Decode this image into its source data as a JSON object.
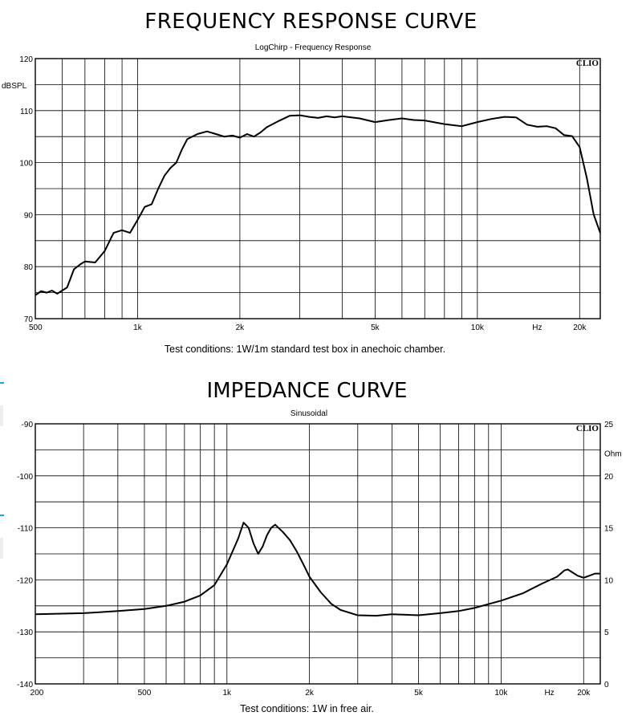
{
  "chart_data": [
    {
      "type": "line",
      "title": "FREQUENCY RESPONSE  CURVE",
      "subtitle": "LogChirp - Frequency Response",
      "watermark": "CLIO",
      "ylabel": "dBSPL",
      "xscale": "log",
      "xlim": [
        500,
        23000
      ],
      "ylim": [
        70,
        120
      ],
      "grid": true,
      "x_tick_labels": [
        {
          "value": 500,
          "label": "500"
        },
        {
          "value": 1000,
          "label": "1k"
        },
        {
          "value": 2000,
          "label": "2k"
        },
        {
          "value": 5000,
          "label": "5k"
        },
        {
          "value": 10000,
          "label": "10k"
        },
        {
          "value": 15000,
          "label": "Hz"
        },
        {
          "value": 20000,
          "label": "20k"
        }
      ],
      "y_ticks": [
        70,
        80,
        90,
        100,
        110,
        120
      ],
      "x_gridlines": [
        600,
        700,
        800,
        900,
        1000,
        2000,
        3000,
        4000,
        5000,
        6000,
        7000,
        8000,
        9000,
        10000,
        20000
      ],
      "x": [
        500,
        520,
        540,
        560,
        580,
        600,
        620,
        650,
        680,
        700,
        750,
        800,
        850,
        900,
        950,
        1000,
        1050,
        1100,
        1150,
        1200,
        1250,
        1300,
        1350,
        1400,
        1500,
        1600,
        1700,
        1800,
        1900,
        2000,
        2100,
        2200,
        2300,
        2400,
        2600,
        2800,
        3000,
        3200,
        3400,
        3600,
        3800,
        4000,
        4500,
        5000,
        5500,
        6000,
        6500,
        7000,
        8000,
        9000,
        10000,
        11000,
        12000,
        13000,
        14000,
        15000,
        16000,
        17000,
        18000,
        19000,
        20000,
        21000,
        22000,
        23000
      ],
      "y": [
        74.5,
        75.3,
        75.0,
        75.4,
        74.8,
        75.4,
        76.0,
        79.5,
        80.5,
        81.0,
        80.8,
        83.0,
        86.5,
        87.0,
        86.5,
        89.0,
        91.5,
        92.0,
        95.0,
        97.5,
        99.0,
        100.0,
        102.5,
        104.5,
        105.5,
        106.0,
        105.5,
        105.0,
        105.2,
        104.8,
        105.5,
        105.0,
        105.8,
        106.8,
        108.0,
        109.0,
        109.1,
        108.8,
        108.6,
        108.9,
        108.7,
        108.9,
        108.5,
        107.8,
        108.2,
        108.5,
        108.2,
        108.1,
        107.4,
        107.0,
        107.8,
        108.4,
        108.8,
        108.7,
        107.3,
        106.9,
        107.0,
        106.6,
        105.3,
        105.1,
        103.0,
        97.0,
        90.0,
        86.5
      ],
      "xlabel": "",
      "note": "Test conditions: 1W/1m standard test box in anechoic chamber."
    },
    {
      "type": "line",
      "title": "IMPEDANCE CURVE",
      "subtitle": "Sinusoidal",
      "watermark": "CLIO",
      "ylabel_right": "Ohm",
      "xscale": "log",
      "xlim": [
        200,
        23000
      ],
      "ylim_left": [
        -140,
        -90
      ],
      "ylim_right": [
        0,
        25
      ],
      "grid": true,
      "x_tick_labels": [
        {
          "value": 200,
          "label": "200"
        },
        {
          "value": 500,
          "label": "500"
        },
        {
          "value": 1000,
          "label": "1k"
        },
        {
          "value": 2000,
          "label": "2k"
        },
        {
          "value": 5000,
          "label": "5k"
        },
        {
          "value": 10000,
          "label": "10k"
        },
        {
          "value": 15000,
          "label": "Hz"
        },
        {
          "value": 20000,
          "label": "20k"
        }
      ],
      "y_ticks_left": [
        -140,
        -130,
        -120,
        -110,
        -100,
        -90
      ],
      "y_ticks_right": [
        0,
        5,
        10,
        15,
        20,
        25
      ],
      "x_gridlines": [
        300,
        400,
        500,
        600,
        700,
        800,
        900,
        1000,
        2000,
        3000,
        4000,
        5000,
        6000,
        7000,
        8000,
        9000,
        10000,
        20000
      ],
      "x": [
        200,
        300,
        400,
        500,
        600,
        700,
        800,
        900,
        1000,
        1100,
        1150,
        1200,
        1250,
        1300,
        1350,
        1400,
        1450,
        1500,
        1600,
        1700,
        1800,
        1900,
        2000,
        2200,
        2400,
        2600,
        3000,
        3500,
        4000,
        5000,
        6000,
        7000,
        8000,
        10000,
        12000,
        14000,
        16000,
        17000,
        17500,
        18000,
        19000,
        20000,
        21000,
        22000,
        23000
      ],
      "y": [
        6.7,
        6.8,
        7.0,
        7.2,
        7.5,
        7.9,
        8.5,
        9.5,
        11.5,
        14.0,
        15.5,
        15.0,
        13.5,
        12.5,
        13.2,
        14.3,
        15.0,
        15.3,
        14.6,
        13.8,
        12.7,
        11.5,
        10.3,
        8.8,
        7.7,
        7.1,
        6.6,
        6.55,
        6.7,
        6.6,
        6.8,
        7.0,
        7.3,
        8.0,
        8.7,
        9.6,
        10.3,
        10.9,
        11.0,
        10.8,
        10.4,
        10.2,
        10.4,
        10.6,
        10.6
      ],
      "y_axis_used": "right",
      "xlabel": "",
      "note": "Test conditions: 1W in free air."
    }
  ]
}
